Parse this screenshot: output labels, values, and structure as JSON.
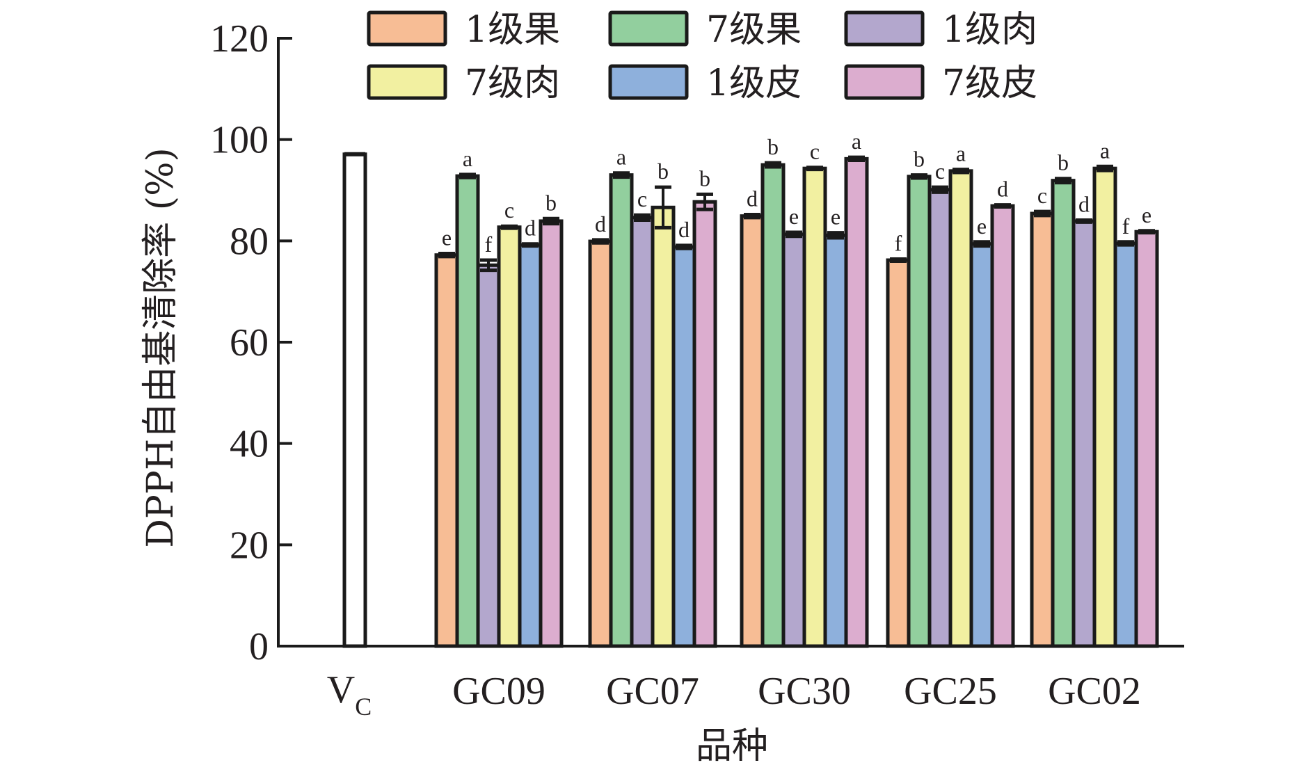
{
  "chart_data": {
    "type": "bar",
    "title": "",
    "xlabel": "品种",
    "ylabel": "DPPH自由基清除率 (%)",
    "ylim": [
      0,
      120
    ],
    "yticks": [
      0,
      20,
      40,
      60,
      80,
      100,
      120
    ],
    "grid": false,
    "legend_position": "top",
    "reference": {
      "name": "V",
      "subscript": "C",
      "value": 97.1,
      "color": "#ffffff"
    },
    "categories": [
      "GC09",
      "GC07",
      "GC30",
      "GC25",
      "GC02"
    ],
    "series": [
      {
        "name": "1级果",
        "color": "#f7bd95",
        "values": [
          77.2,
          79.9,
          84.9,
          76.2,
          85.4
        ],
        "errors": [
          0.3,
          0.3,
          0.3,
          0.2,
          0.4
        ],
        "letters": [
          "e",
          "d",
          "d",
          "f",
          "c"
        ]
      },
      {
        "name": "7级果",
        "color": "#92cf9e",
        "values": [
          92.8,
          93.0,
          95.0,
          92.7,
          91.9
        ],
        "errors": [
          0.3,
          0.4,
          0.4,
          0.3,
          0.4
        ],
        "letters": [
          "a",
          "a",
          "b",
          "b",
          "b"
        ]
      },
      {
        "name": "1级肉",
        "color": "#b3a7cd",
        "values": [
          75.2,
          84.6,
          81.3,
          90.1,
          83.9
        ],
        "errors": [
          1.0,
          0.5,
          0.4,
          0.5,
          0.2
        ],
        "letters": [
          "f",
          "c",
          "e",
          "c",
          "d"
        ]
      },
      {
        "name": "7级肉",
        "color": "#f2f0a1",
        "values": [
          82.7,
          86.6,
          94.3,
          93.8,
          94.3
        ],
        "errors": [
          0.2,
          4.0,
          0.2,
          0.3,
          0.4
        ],
        "letters": [
          "c",
          "b",
          "c",
          "a",
          "a"
        ]
      },
      {
        "name": "1级皮",
        "color": "#8eb0dc",
        "values": [
          79.2,
          78.8,
          81.1,
          79.4,
          79.5
        ],
        "errors": [
          0.2,
          0.3,
          0.5,
          0.4,
          0.3
        ],
        "letters": [
          "d",
          "d",
          "e",
          "e",
          "f"
        ]
      },
      {
        "name": "7级皮",
        "color": "#dcadcf",
        "values": [
          83.9,
          87.7,
          96.2,
          86.9,
          81.8
        ],
        "errors": [
          0.5,
          1.5,
          0.3,
          0.2,
          0.2
        ],
        "letters": [
          "b",
          "b",
          "a",
          "d",
          "e"
        ]
      }
    ]
  }
}
